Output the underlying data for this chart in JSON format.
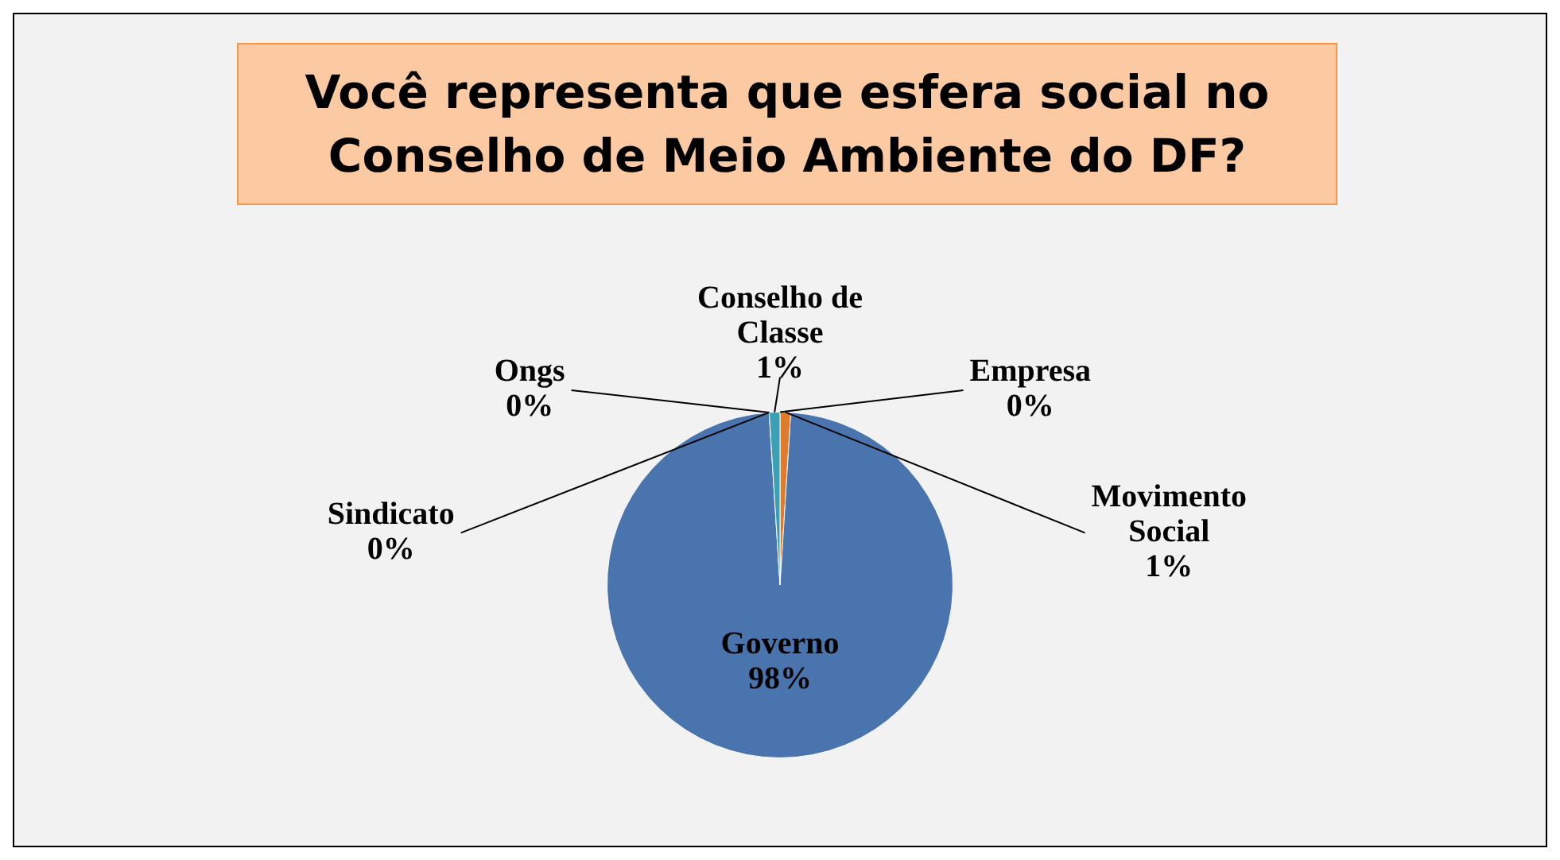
{
  "chart_data": {
    "type": "pie",
    "title": "Você representa que esfera social no Conselho de Meio Ambiente do DF?",
    "categories": [
      "Movimento Social",
      "Governo",
      "Sindicato",
      "Ongs",
      "Conselho de Classe",
      "Empresa"
    ],
    "values": [
      1,
      98,
      0,
      0,
      1,
      0
    ],
    "value_labels": [
      "1%",
      "98%",
      "0%",
      "0%",
      "1%",
      "0%"
    ],
    "colors": [
      "#e07b2e",
      "#4a74ad",
      "#8064a2",
      "#9bbb59",
      "#3aa0b5",
      "#c0504d"
    ],
    "legend": false
  }
}
